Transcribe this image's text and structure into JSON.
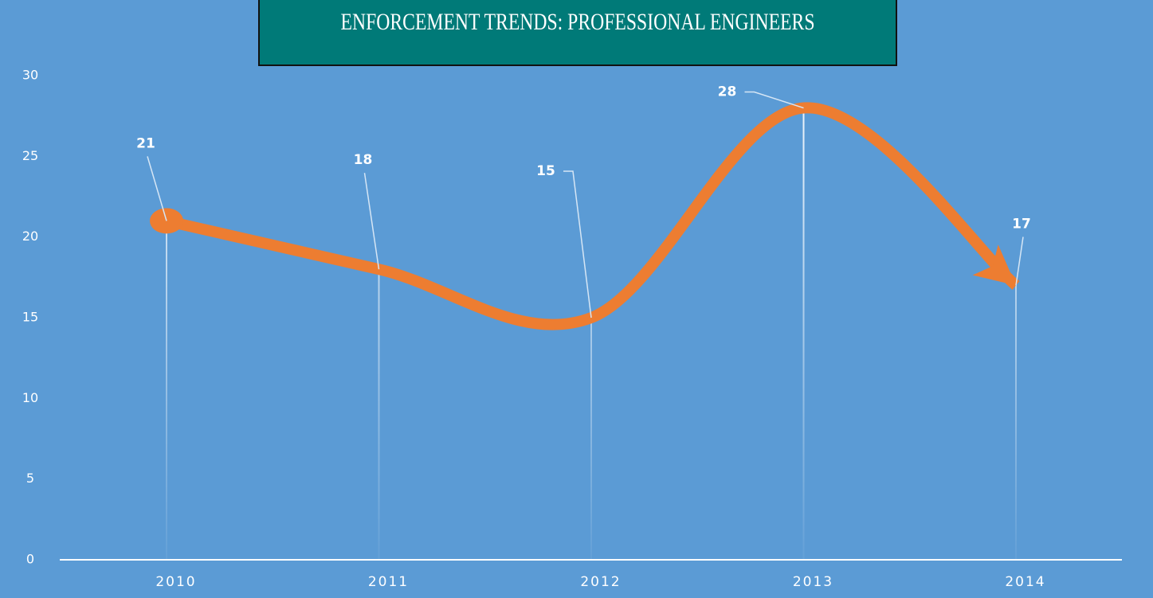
{
  "chart_data": {
    "type": "line",
    "title": "ENFORCEMENT TRENDS: PROFESSIONAL ENGINEERS",
    "categories": [
      "2010",
      "2011",
      "2012",
      "2013",
      "2014"
    ],
    "values": [
      21,
      18,
      15,
      28,
      17
    ],
    "color": "#ed7d31",
    "ylim": [
      0,
      30
    ],
    "yticks": [
      0,
      5,
      10,
      15,
      20,
      25,
      30
    ]
  }
}
